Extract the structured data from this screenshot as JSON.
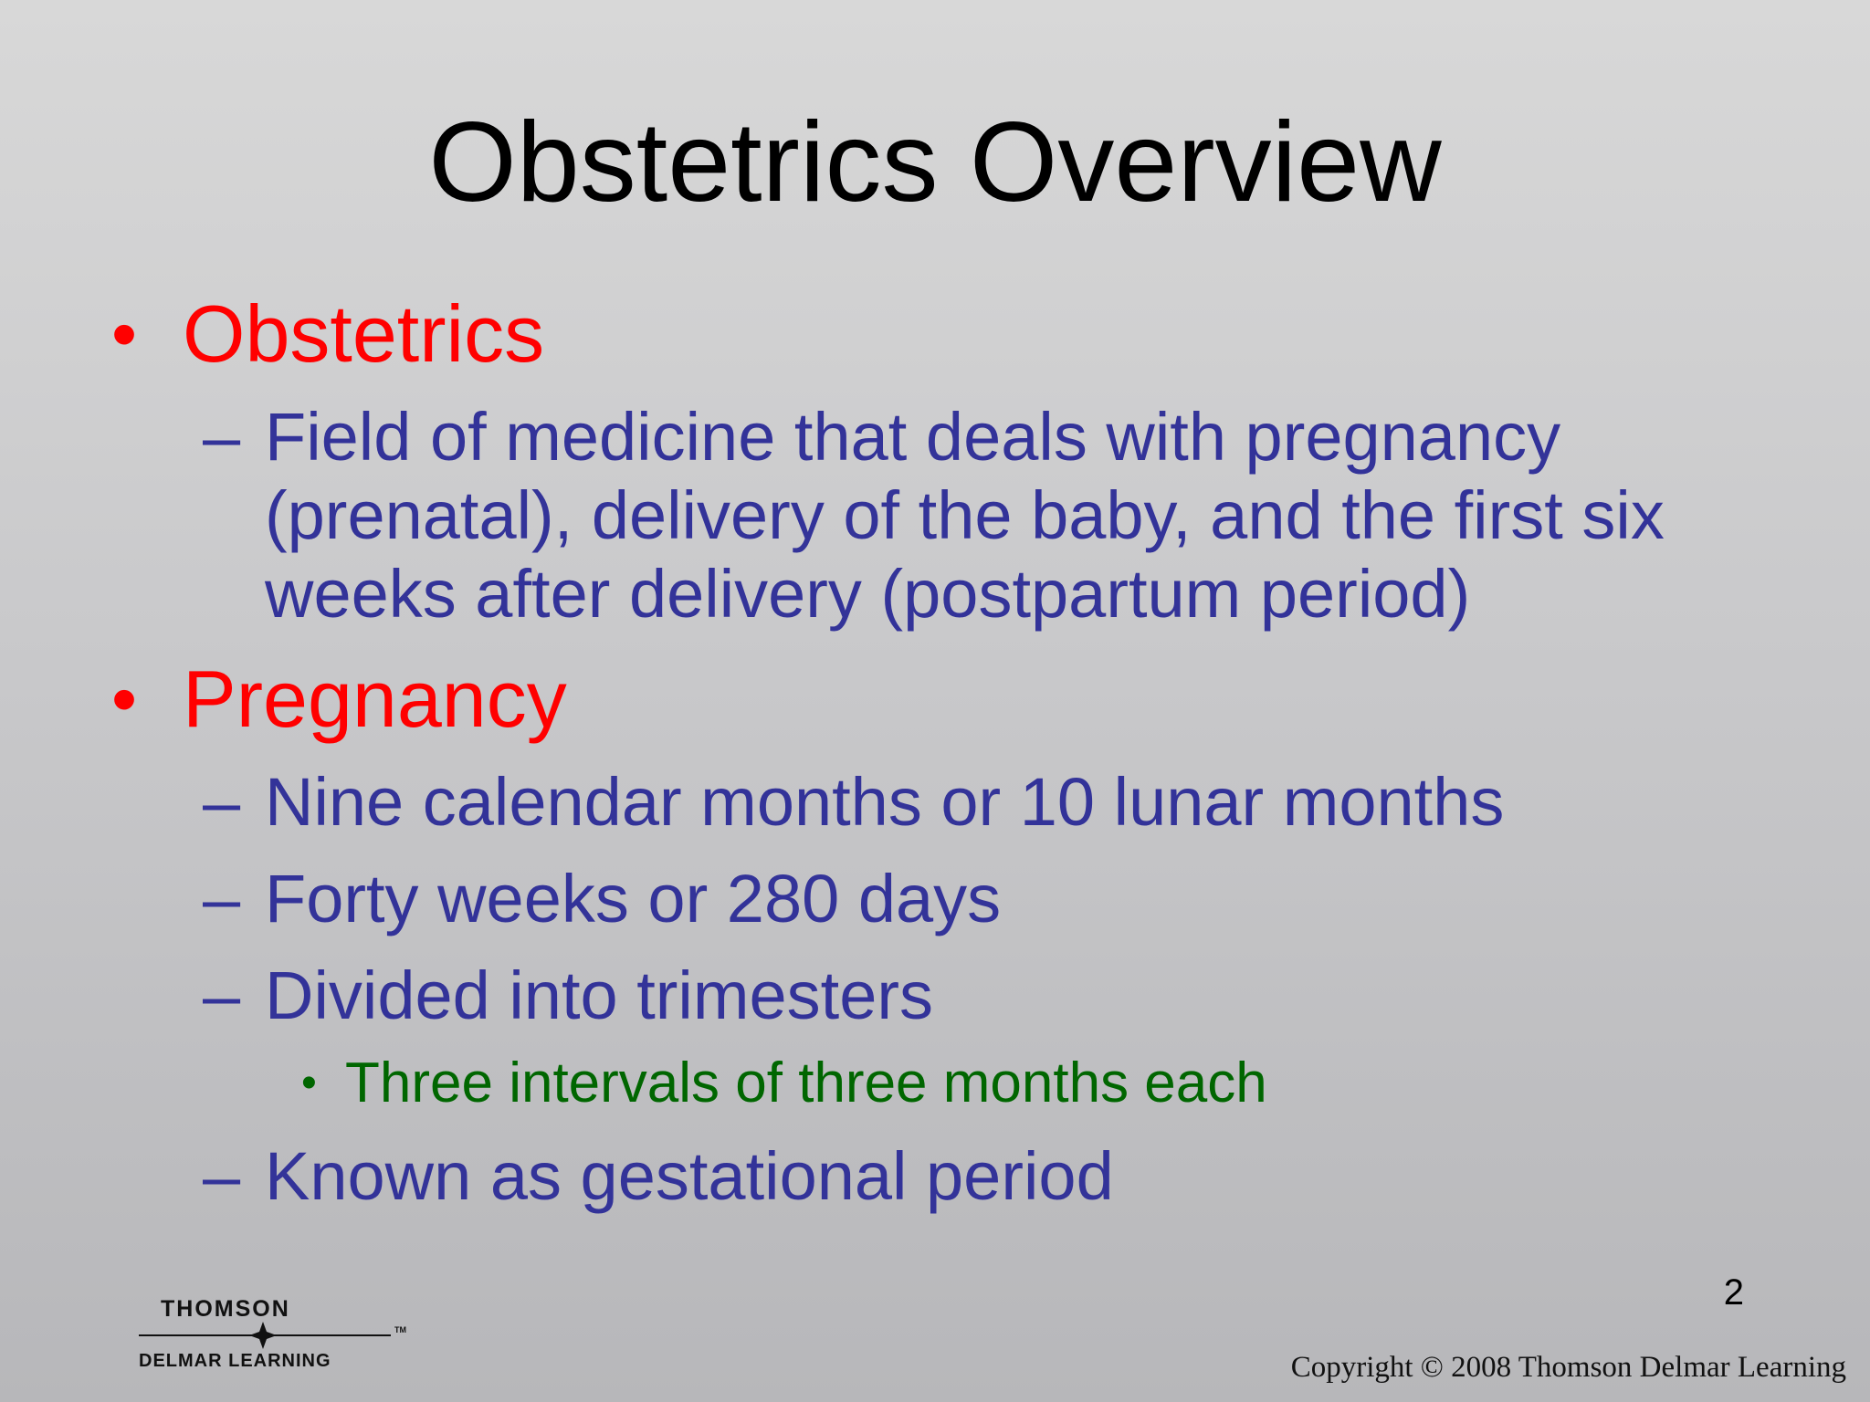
{
  "slide": {
    "title": "Obstetrics Overview",
    "bullet_marker": "•",
    "dash_marker": "–",
    "items": [
      {
        "level": 1,
        "text": "Obstetrics"
      },
      {
        "level": 2,
        "text": "Field of medicine that deals with pregnancy (prenatal), delivery of the baby, and the first six weeks after delivery (postpartum period)"
      },
      {
        "level": 1,
        "text": "Pregnancy"
      },
      {
        "level": 2,
        "text": "Nine calendar months or 10 lunar months"
      },
      {
        "level": 2,
        "text": "Forty weeks or 280 days"
      },
      {
        "level": 2,
        "text": "Divided into trimesters"
      },
      {
        "level": 3,
        "text": "Three intervals of three months each"
      },
      {
        "level": 2,
        "text": "Known as gestational period"
      }
    ],
    "page_number": "2",
    "copyright": "Copyright © 2008 Thomson Delmar Learning",
    "logo": {
      "line1": "THOMSON",
      "line2": "DELMAR LEARNING",
      "trademark": "TM"
    },
    "colors": {
      "level1": "#ff0000",
      "level2": "#333399",
      "level3": "#006600",
      "title": "#000000"
    }
  }
}
